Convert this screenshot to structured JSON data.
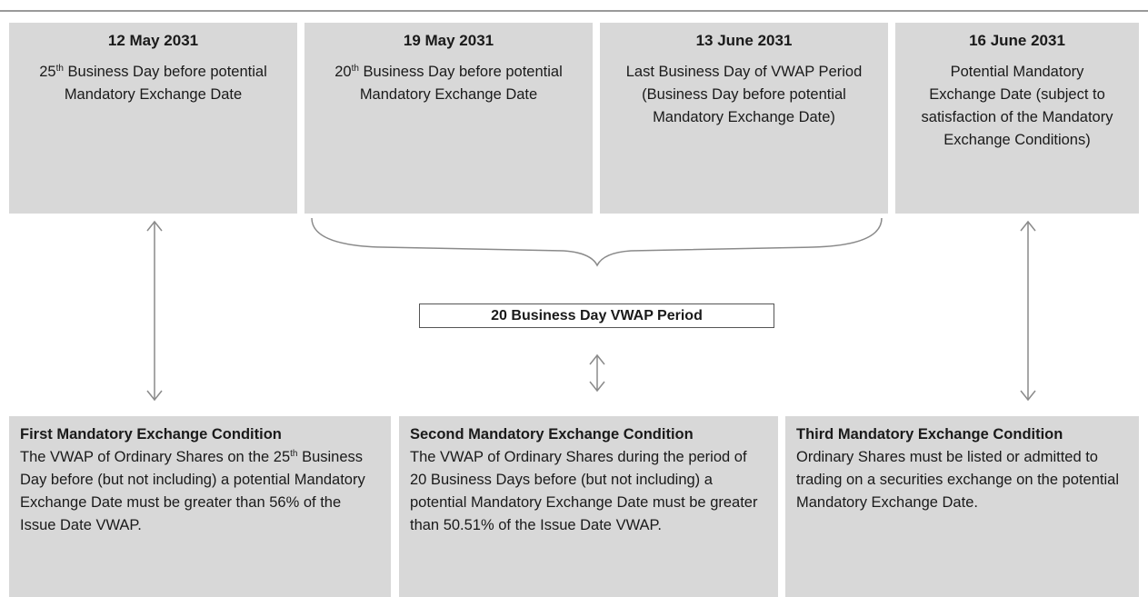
{
  "top_boxes": [
    {
      "date": "12 May 2031",
      "description": [
        "25",
        {
          "sup": "th"
        },
        " Business Day before potential Mandatory Exchange Date"
      ]
    },
    {
      "date": "19 May 2031",
      "description": [
        "20",
        {
          "sup": "th"
        },
        " Business Day before potential Mandatory Exchange Date"
      ]
    },
    {
      "date": "13 June 2031",
      "description": [
        "Last Business Day of VWAP Period (Business Day before potential Mandatory Exchange Date)"
      ]
    },
    {
      "date": "16 June 2031",
      "description": [
        "Potential Mandatory Exchange Date (subject to satisfaction of the Mandatory Exchange Conditions)"
      ]
    }
  ],
  "period_label": "20 Business Day VWAP Period",
  "conditions": [
    {
      "title": "First Mandatory Exchange Condition",
      "description": [
        "The VWAP of Ordinary Shares on the 25",
        {
          "sup": "th"
        },
        " Business Day before (but not including) a potential Mandatory Exchange Date must be greater than 56% of the Issue Date VWAP."
      ]
    },
    {
      "title": "Second Mandatory Exchange Condition",
      "description": [
        "The VWAP of Ordinary Shares during the period of 20 Business Days before (but not including) a potential Mandatory Exchange Date must be greater than 50.51% of the Issue Date VWAP."
      ]
    },
    {
      "title": "Third Mandatory Exchange Condition",
      "description": [
        "Ordinary Shares must be listed or admitted to trading on a securities exchange on the potential Mandatory Exchange Date."
      ]
    }
  ]
}
